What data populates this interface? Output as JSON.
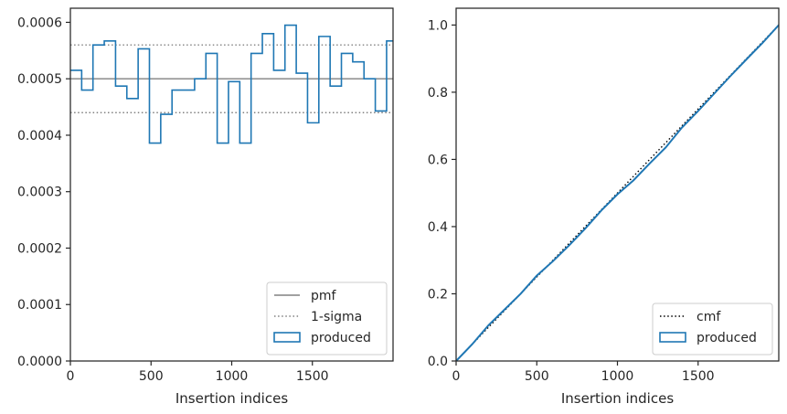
{
  "chart_data": [
    {
      "type": "line",
      "panel": "left",
      "xlabel": "Insertion indices",
      "ylabel": "",
      "xlim": [
        0,
        2000
      ],
      "ylim": [
        0,
        0.000625
      ],
      "x_ticks": [
        0,
        500,
        1000,
        1500
      ],
      "x_tick_labels": [
        "0",
        "500",
        "1000",
        "1500"
      ],
      "y_ticks": [
        0,
        0.0001,
        0.0002,
        0.0003,
        0.0004,
        0.0005,
        0.0006
      ],
      "y_tick_labels": [
        "0.0000",
        "0.0001",
        "0.0002",
        "0.0003",
        "0.0004",
        "0.0005",
        "0.0006"
      ],
      "grid": false,
      "legend_position": "lower-right",
      "series": [
        {
          "name": "pmf",
          "style": "solid",
          "color": "#808080",
          "x": [
            0,
            2000
          ],
          "y": [
            0.0005,
            0.0005
          ]
        },
        {
          "name": "1-sigma",
          "style": "dotted",
          "color": "#808080",
          "bands": [
            0.00056,
            0.00044
          ]
        },
        {
          "name": "produced",
          "style": "step",
          "color": "#1f77b4",
          "bin_edges": [
            0,
            70,
            140,
            210,
            280,
            350,
            420,
            490,
            560,
            630,
            700,
            770,
            840,
            910,
            980,
            1050,
            1120,
            1190,
            1260,
            1330,
            1400,
            1470,
            1540,
            1610,
            1680,
            1750,
            1820,
            1890,
            1960,
            2000
          ],
          "values": [
            0.000515,
            0.00048,
            0.00056,
            0.000567,
            0.000487,
            0.000465,
            0.000553,
            0.000386,
            0.000437,
            0.00048,
            0.00048,
            0.0005,
            0.000545,
            0.000386,
            0.000495,
            0.000386,
            0.000545,
            0.00058,
            0.000515,
            0.000595,
            0.00051,
            0.000422,
            0.000575,
            0.000487,
            0.000545,
            0.00053,
            0.0005,
            0.000443,
            0.000567
          ]
        }
      ]
    },
    {
      "type": "line",
      "panel": "right",
      "xlabel": "Insertion indices",
      "ylabel": "",
      "xlim": [
        0,
        2000
      ],
      "ylim": [
        0,
        1.05
      ],
      "x_ticks": [
        0,
        500,
        1000,
        1500
      ],
      "x_tick_labels": [
        "0",
        "500",
        "1000",
        "1500"
      ],
      "y_ticks": [
        0,
        0.2,
        0.4,
        0.6,
        0.8,
        1.0
      ],
      "y_tick_labels": [
        "0.0",
        "0.2",
        "0.4",
        "0.6",
        "0.8",
        "1.0"
      ],
      "grid": false,
      "legend_position": "lower-right",
      "series": [
        {
          "name": "cmf",
          "style": "dotted",
          "color": "#000000",
          "x": [
            0,
            2000
          ],
          "y": [
            0,
            1
          ]
        },
        {
          "name": "produced",
          "style": "step",
          "color": "#1f77b4",
          "x": [
            0,
            100,
            200,
            300,
            400,
            500,
            600,
            700,
            800,
            900,
            1000,
            1100,
            1200,
            1300,
            1400,
            1500,
            1600,
            1700,
            1800,
            1900,
            2000
          ],
          "y": [
            0,
            0.05,
            0.106,
            0.153,
            0.2,
            0.254,
            0.297,
            0.344,
            0.394,
            0.448,
            0.496,
            0.538,
            0.588,
            0.636,
            0.695,
            0.744,
            0.796,
            0.848,
            0.898,
            0.947,
            1.0
          ]
        }
      ]
    }
  ]
}
